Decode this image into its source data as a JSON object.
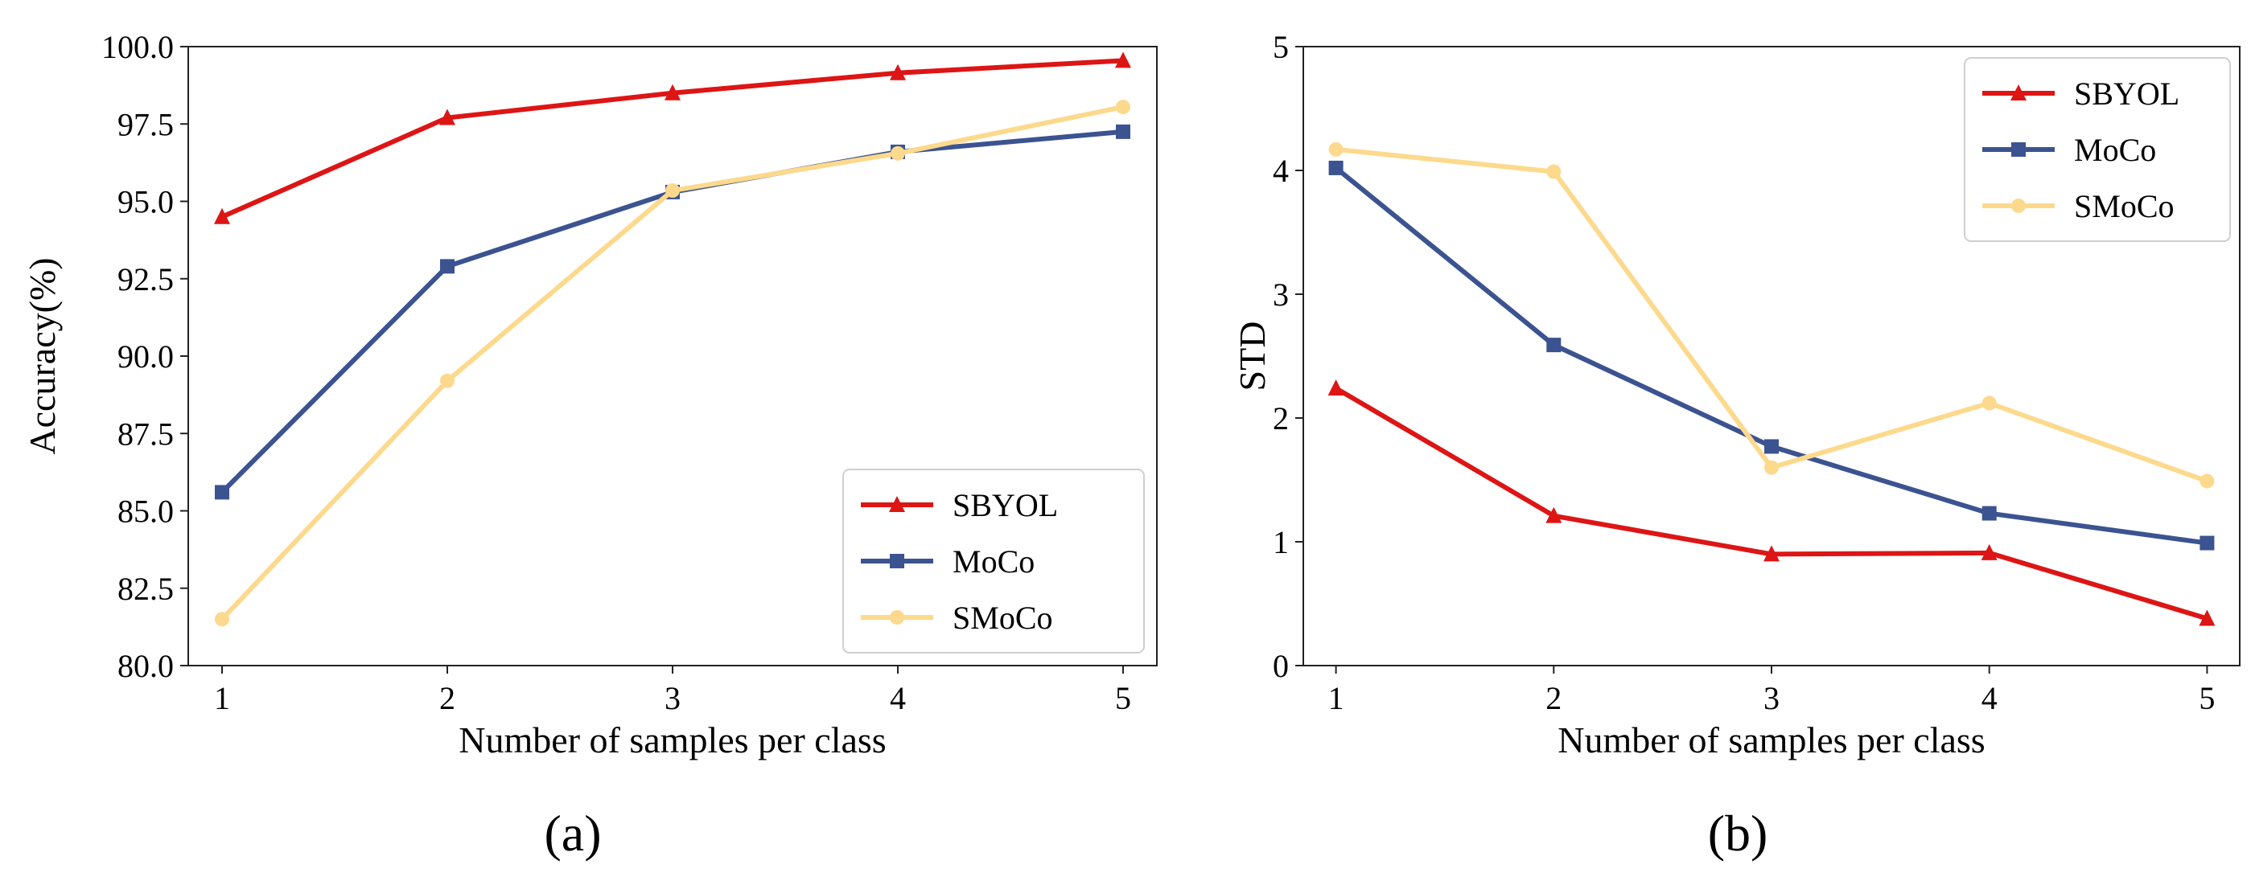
{
  "chart_data": [
    {
      "type": "line",
      "panel_label": "(a)",
      "xlabel": "Number of samples per class",
      "ylabel": "Accuracy(%)",
      "x": [
        1,
        2,
        3,
        4,
        5
      ],
      "xticks": [
        1,
        2,
        3,
        4,
        5
      ],
      "ylim": [
        80.0,
        100.0
      ],
      "yticks": [
        "80.0",
        "82.5",
        "85.0",
        "87.5",
        "90.0",
        "92.5",
        "95.0",
        "97.5",
        "100.0"
      ],
      "grid": false,
      "legend_position": "bottom-right",
      "series": [
        {
          "name": "SBYOL",
          "color": "#dd1515",
          "marker": "triangle",
          "values": [
            94.5,
            97.7,
            98.5,
            99.15,
            99.55
          ]
        },
        {
          "name": "MoCo",
          "color": "#3b5390",
          "marker": "square",
          "values": [
            85.6,
            92.9,
            95.3,
            96.6,
            97.25
          ]
        },
        {
          "name": "SMoCo",
          "color": "#fcd98c",
          "marker": "circle",
          "values": [
            81.5,
            89.2,
            95.35,
            96.55,
            98.05
          ]
        }
      ]
    },
    {
      "type": "line",
      "panel_label": "(b)",
      "xlabel": "Number of samples per class",
      "ylabel": "STD",
      "x": [
        1,
        2,
        3,
        4,
        5
      ],
      "xticks": [
        1,
        2,
        3,
        4,
        5
      ],
      "ylim": [
        0,
        5
      ],
      "yticks": [
        "0",
        "1",
        "2",
        "3",
        "4",
        "5"
      ],
      "grid": false,
      "legend_position": "top-right",
      "series": [
        {
          "name": "SBYOL",
          "color": "#dd1515",
          "marker": "triangle",
          "values": [
            2.24,
            1.21,
            0.9,
            0.91,
            0.38
          ]
        },
        {
          "name": "MoCo",
          "color": "#3b5390",
          "marker": "square",
          "values": [
            4.02,
            2.59,
            1.77,
            1.23,
            0.99
          ]
        },
        {
          "name": "SMoCo",
          "color": "#fcd98c",
          "marker": "circle",
          "values": [
            4.17,
            3.99,
            1.6,
            2.12,
            1.49
          ]
        }
      ]
    }
  ]
}
